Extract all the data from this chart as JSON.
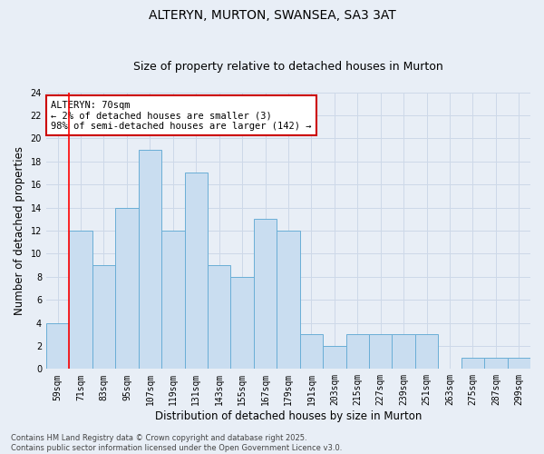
{
  "title_line1": "ALTERYN, MURTON, SWANSEA, SA3 3AT",
  "title_line2": "Size of property relative to detached houses in Murton",
  "xlabel": "Distribution of detached houses by size in Murton",
  "ylabel": "Number of detached properties",
  "categories": [
    "59sqm",
    "71sqm",
    "83sqm",
    "95sqm",
    "107sqm",
    "119sqm",
    "131sqm",
    "143sqm",
    "155sqm",
    "167sqm",
    "179sqm",
    "191sqm",
    "203sqm",
    "215sqm",
    "227sqm",
    "239sqm",
    "251sqm",
    "263sqm",
    "275sqm",
    "287sqm",
    "299sqm"
  ],
  "values": [
    4,
    12,
    9,
    14,
    19,
    12,
    17,
    9,
    8,
    13,
    12,
    3,
    2,
    3,
    3,
    3,
    3,
    0,
    1,
    1,
    1
  ],
  "bar_color": "#c9ddf0",
  "bar_edge_color": "#6aaed6",
  "grid_color": "#cdd8e8",
  "background_color": "#e8eef6",
  "red_line_x": 0.5,
  "annotation_text": "ALTERYN: 70sqm\n← 2% of detached houses are smaller (3)\n98% of semi-detached houses are larger (142) →",
  "annotation_box_color": "#ffffff",
  "annotation_box_edge": "#cc0000",
  "footer_text": "Contains HM Land Registry data © Crown copyright and database right 2025.\nContains public sector information licensed under the Open Government Licence v3.0.",
  "ylim": [
    0,
    24
  ],
  "yticks": [
    0,
    2,
    4,
    6,
    8,
    10,
    12,
    14,
    16,
    18,
    20,
    22,
    24
  ],
  "title1_fontsize": 10,
  "title2_fontsize": 9,
  "xlabel_fontsize": 8.5,
  "ylabel_fontsize": 8.5,
  "tick_fontsize": 7,
  "annotation_fontsize": 7.5,
  "footer_fontsize": 6
}
